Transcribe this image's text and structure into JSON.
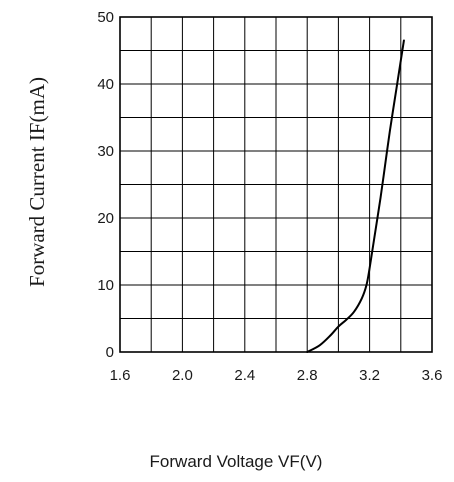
{
  "chart_data": {
    "type": "line",
    "title": "",
    "xlabel": "Forward Voltage VF(V)",
    "ylabel": "Forward Current IF(mA)",
    "xlim": [
      1.6,
      3.6
    ],
    "ylim": [
      0,
      50
    ],
    "x_ticks": [
      "1.6",
      "2.0",
      "2.4",
      "2.8",
      "3.2",
      "3.6"
    ],
    "y_ticks": [
      "0",
      "10",
      "20",
      "30",
      "40",
      "50"
    ],
    "grid": true,
    "legend": "none",
    "series": [
      {
        "color": "#000000",
        "x": [
          2.8,
          2.88,
          2.95,
          3.0,
          3.05,
          3.1,
          3.15,
          3.18,
          3.2,
          3.23,
          3.27,
          3.3,
          3.33,
          3.37,
          3.4,
          3.42
        ],
        "y": [
          0.0,
          1.0,
          2.5,
          3.8,
          4.8,
          6.0,
          8.0,
          10.0,
          12.5,
          17.0,
          23.0,
          28.0,
          33.0,
          39.0,
          43.5,
          46.5
        ]
      }
    ]
  }
}
